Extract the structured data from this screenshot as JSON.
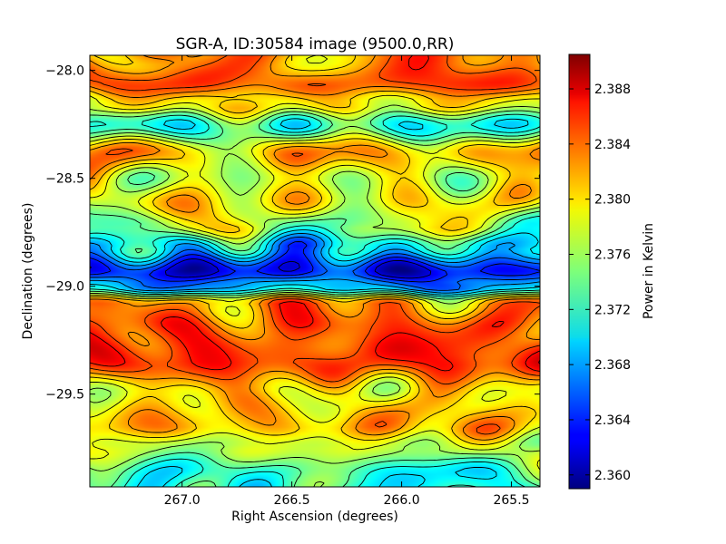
{
  "chart_data": {
    "type": "heatmap",
    "title": "SGR-A, ID:30584 image (9500.0,RR)",
    "xlabel": "Right Ascension (degrees)",
    "ylabel": "Declination (degrees)",
    "colorbar_label": "Power in Kelvin",
    "colormap": "jet",
    "xlim": [
      267.42,
      265.37
    ],
    "ylim": [
      -29.93,
      -27.93
    ],
    "x_ticks": [
      267.0,
      266.5,
      266.0,
      265.5
    ],
    "x_tick_labels": [
      "267.0",
      "266.5",
      "266.0",
      "265.5"
    ],
    "y_ticks": [
      -28.0,
      -28.5,
      -29.0,
      -29.5
    ],
    "y_tick_labels": [
      "−28.0",
      "−28.5",
      "−29.0",
      "−29.5"
    ],
    "color_range": [
      2.359,
      2.3905
    ],
    "colorbar_ticks": [
      2.36,
      2.364,
      2.368,
      2.372,
      2.376,
      2.38,
      2.384,
      2.388
    ],
    "colorbar_tick_labels": [
      "2.360",
      "2.364",
      "2.368",
      "2.372",
      "2.376",
      "2.380",
      "2.384",
      "2.388"
    ],
    "contours": true,
    "dec_profile": [
      {
        "dec": -27.95,
        "value": 2.382
      },
      {
        "dec": -28.05,
        "value": 2.384
      },
      {
        "dec": -28.15,
        "value": 2.379
      },
      {
        "dec": -28.25,
        "value": 2.372
      },
      {
        "dec": -28.38,
        "value": 2.381
      },
      {
        "dec": -28.5,
        "value": 2.377
      },
      {
        "dec": -28.6,
        "value": 2.379
      },
      {
        "dec": -28.72,
        "value": 2.376
      },
      {
        "dec": -28.82,
        "value": 2.37
      },
      {
        "dec": -28.93,
        "value": 2.363
      },
      {
        "dec": -29.0,
        "value": 2.368
      },
      {
        "dec": -29.08,
        "value": 2.382
      },
      {
        "dec": -29.2,
        "value": 2.384
      },
      {
        "dec": -29.35,
        "value": 2.385
      },
      {
        "dec": -29.5,
        "value": 2.379
      },
      {
        "dec": -29.65,
        "value": 2.381
      },
      {
        "dec": -29.75,
        "value": 2.377
      },
      {
        "dec": -29.88,
        "value": 2.372
      }
    ]
  }
}
